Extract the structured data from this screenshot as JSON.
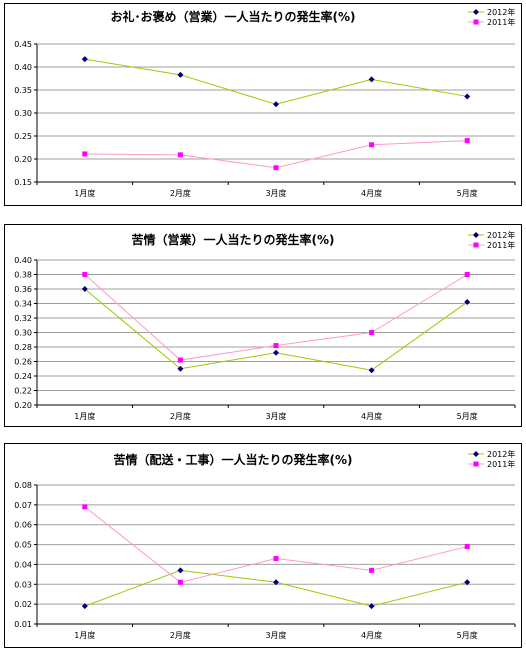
{
  "chart_data": [
    {
      "type": "line",
      "title": "お礼･お褒め（営業）一人当たりの発生率(%)",
      "categories": [
        "1月度",
        "2月度",
        "3月度",
        "4月度",
        "5月度"
      ],
      "series": [
        {
          "name": "2012年",
          "color": "#99cc00",
          "marker": "diamond",
          "marker_color": "#000080",
          "values": [
            0.417,
            0.383,
            0.319,
            0.373,
            0.336
          ]
        },
        {
          "name": "2011年",
          "color": "#ff99cc",
          "marker": "square",
          "marker_color": "#ff00ff",
          "values": [
            0.211,
            0.209,
            0.181,
            0.231,
            0.24
          ]
        }
      ],
      "ylim": [
        0.15,
        0.45
      ],
      "yticks": [
        "0.45",
        "0.40",
        "0.35",
        "0.30",
        "0.25",
        "0.20",
        "0.15"
      ],
      "grid": true,
      "legend": "top-right"
    },
    {
      "type": "line",
      "title": "苦情（営業）一人当たりの発生率(%)",
      "categories": [
        "1月度",
        "2月度",
        "3月度",
        "4月度",
        "5月度"
      ],
      "series": [
        {
          "name": "2012年",
          "color": "#99cc00",
          "marker": "diamond",
          "marker_color": "#000080",
          "values": [
            0.36,
            0.25,
            0.272,
            0.248,
            0.342
          ]
        },
        {
          "name": "2011年",
          "color": "#ff99cc",
          "marker": "square",
          "marker_color": "#ff00ff",
          "values": [
            0.38,
            0.262,
            0.282,
            0.3,
            0.38
          ]
        }
      ],
      "ylim": [
        0.2,
        0.4
      ],
      "yticks": [
        "0.40",
        "0.38",
        "0.36",
        "0.34",
        "0.32",
        "0.30",
        "0.28",
        "0.26",
        "0.24",
        "0.22",
        "0.20"
      ],
      "grid": true,
      "legend": "top-right"
    },
    {
      "type": "line",
      "title": "苦情（配送・工事）一人当たりの発生率(%)",
      "categories": [
        "1月度",
        "2月度",
        "3月度",
        "4月度",
        "5月度"
      ],
      "series": [
        {
          "name": "2012年",
          "color": "#99cc00",
          "marker": "diamond",
          "marker_color": "#000080",
          "values": [
            0.019,
            0.037,
            0.031,
            0.019,
            0.031
          ]
        },
        {
          "name": "2011年",
          "color": "#ff99cc",
          "marker": "square",
          "marker_color": "#ff00ff",
          "values": [
            0.069,
            0.031,
            0.043,
            0.037,
            0.049
          ]
        }
      ],
      "ylim": [
        0.01,
        0.08
      ],
      "yticks": [
        "0.08",
        "0.07",
        "0.06",
        "0.05",
        "0.04",
        "0.03",
        "0.02",
        "0.01"
      ],
      "grid": true,
      "legend": "top-right"
    }
  ]
}
